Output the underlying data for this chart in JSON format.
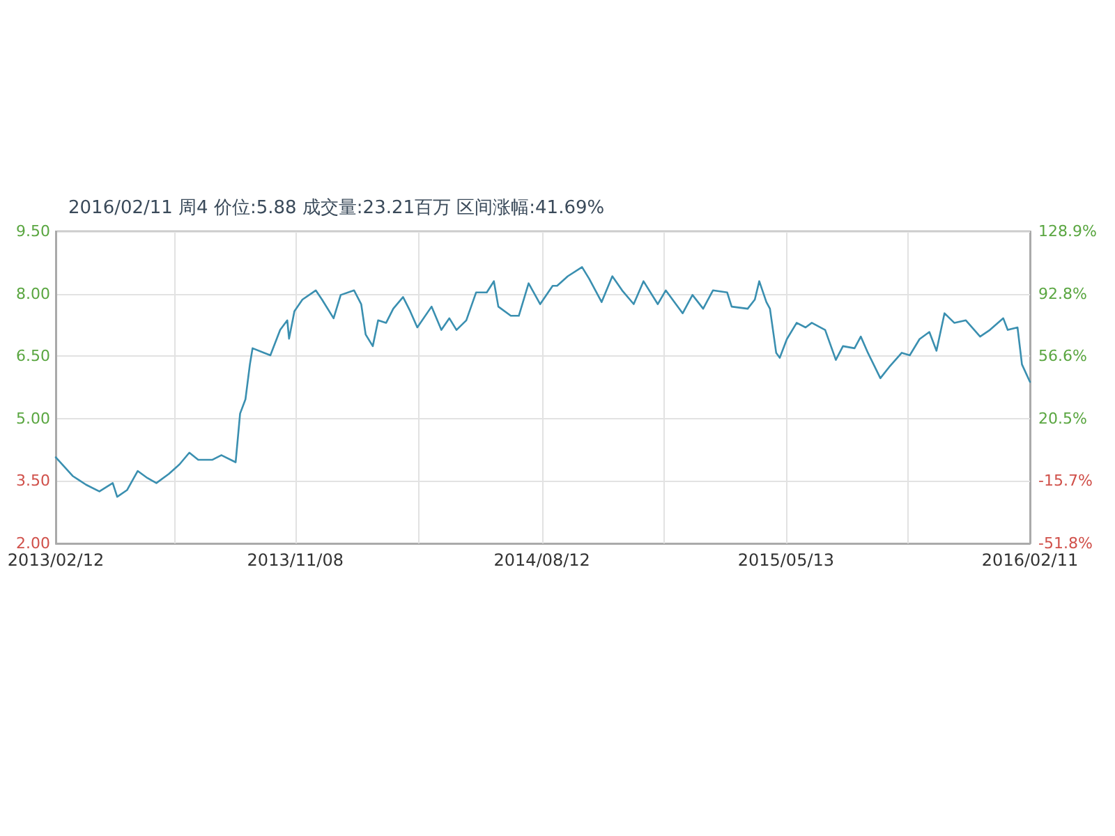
{
  "chart_data": {
    "type": "line",
    "title": "2016/02/11 周4 价位:5.88 成交量:23.21百万 区间涨幅:41.69%",
    "xlim": [
      "2013-02-12",
      "2016-02-11"
    ],
    "xticks": [
      {
        "value": "2013-02-12",
        "label": "2013/02/12"
      },
      {
        "value": "2013-06-26",
        "label": null
      },
      {
        "value": "2013-11-08",
        "label": "2013/11/08"
      },
      {
        "value": "2014-03-26",
        "label": null
      },
      {
        "value": "2014-08-12",
        "label": "2014/08/12"
      },
      {
        "value": "2014-12-27",
        "label": null
      },
      {
        "value": "2015-05-13",
        "label": "2015/05/13"
      },
      {
        "value": "2015-09-27",
        "label": null
      },
      {
        "value": "2016-02-11",
        "label": "2016/02/11"
      }
    ],
    "ylim": [
      2,
      9.5
    ],
    "yticks": [
      {
        "value": 2,
        "label": "2.00"
      },
      {
        "value": 3.5,
        "label": "3.50"
      },
      {
        "value": 5,
        "label": "5.00"
      },
      {
        "value": 6.5,
        "label": "6.50"
      },
      {
        "value": 8,
        "label": "8.00"
      },
      {
        "value": 9.5,
        "label": "9.50"
      }
    ],
    "y2lim": [
      -51.8,
      128.9
    ],
    "y2ticks": [
      {
        "value": -51.8,
        "label": "-51.8%"
      },
      {
        "value": -15.7,
        "label": "-15.7%"
      },
      {
        "value": 20.5,
        "label": "20.5%"
      },
      {
        "value": 56.6,
        "label": "56.6%"
      },
      {
        "value": 92.8,
        "label": "92.8%"
      },
      {
        "value": 128.9,
        "label": "128.9%"
      }
    ],
    "grid": true,
    "marker": "none",
    "line_style": "solid",
    "series": [
      {
        "color": "#3a8fb0",
        "x": [
          "2013-02-12",
          "2013-03-03",
          "2013-03-11",
          "2013-03-18",
          "2013-04-02",
          "2013-04-17",
          "2013-04-22",
          "2013-05-03",
          "2013-05-15",
          "2013-05-26",
          "2013-06-05",
          "2013-06-19",
          "2013-07-01",
          "2013-07-12",
          "2013-07-22",
          "2013-08-07",
          "2013-08-17",
          "2013-09-02",
          "2013-09-07",
          "2013-09-13",
          "2013-09-18",
          "2013-09-21",
          "2013-10-04",
          "2013-10-11",
          "2013-10-22",
          "2013-10-30",
          "2013-11-01",
          "2013-11-07",
          "2013-11-16",
          "2013-12-01",
          "2013-12-08",
          "2013-12-21",
          "2013-12-29",
          "2014-01-13",
          "2014-01-21",
          "2014-01-26",
          "2014-02-03",
          "2014-02-09",
          "2014-02-18",
          "2014-02-26",
          "2014-03-09",
          "2014-03-17",
          "2014-03-25",
          "2014-04-10",
          "2014-04-21",
          "2014-04-30",
          "2014-05-08",
          "2014-05-19",
          "2014-05-30",
          "2014-06-11",
          "2014-06-19",
          "2014-06-24",
          "2014-07-08",
          "2014-07-17",
          "2014-07-28",
          "2014-08-10",
          "2014-08-24",
          "2014-08-29",
          "2014-09-10",
          "2014-09-26",
          "2014-10-04",
          "2014-10-18",
          "2014-10-30",
          "2014-11-10",
          "2014-11-23",
          "2014-12-04",
          "2014-12-20",
          "2014-12-29",
          "2015-01-17",
          "2015-01-28",
          "2015-02-09",
          "2015-02-20",
          "2015-03-08",
          "2015-03-13",
          "2015-03-31",
          "2015-04-08",
          "2015-04-13",
          "2015-04-21",
          "2015-04-25",
          "2015-05-02",
          "2015-05-06",
          "2015-05-14",
          "2015-05-25",
          "2015-06-04",
          "2015-06-11",
          "2015-06-26",
          "2015-07-08",
          "2015-07-16",
          "2015-07-29",
          "2015-08-05",
          "2015-08-13",
          "2015-08-27",
          "2015-09-06",
          "2015-09-20",
          "2015-09-29",
          "2015-10-10",
          "2015-10-21",
          "2015-10-29",
          "2015-11-07",
          "2015-11-18",
          "2015-12-01",
          "2015-12-17",
          "2015-12-28",
          "2016-01-12",
          "2016-01-17",
          "2016-01-28",
          "2016-02-02",
          "2016-02-11"
        ],
        "values": [
          4.07,
          3.62,
          3.51,
          3.41,
          3.25,
          3.45,
          3.12,
          3.28,
          3.74,
          3.57,
          3.45,
          3.67,
          3.9,
          4.18,
          4.01,
          4.01,
          4.12,
          3.95,
          5.12,
          5.46,
          6.3,
          6.69,
          6.58,
          6.52,
          7.13,
          7.36,
          6.92,
          7.58,
          7.86,
          8.08,
          7.86,
          7.41,
          7.97,
          8.08,
          7.75,
          7.02,
          6.74,
          7.36,
          7.3,
          7.64,
          7.92,
          7.58,
          7.19,
          7.69,
          7.13,
          7.41,
          7.13,
          7.36,
          8.03,
          8.03,
          8.3,
          7.69,
          7.47,
          7.47,
          8.25,
          7.75,
          8.19,
          8.19,
          8.42,
          8.64,
          8.36,
          7.8,
          8.42,
          8.08,
          7.75,
          8.3,
          7.75,
          8.08,
          7.53,
          7.97,
          7.64,
          8.08,
          8.03,
          7.69,
          7.64,
          7.86,
          8.3,
          7.8,
          7.64,
          6.58,
          6.46,
          6.91,
          7.3,
          7.19,
          7.3,
          7.13,
          6.41,
          6.74,
          6.69,
          6.97,
          6.58,
          5.97,
          6.24,
          6.58,
          6.52,
          6.91,
          7.08,
          6.63,
          7.53,
          7.3,
          7.36,
          6.97,
          7.13,
          7.41,
          7.13,
          7.19,
          6.3,
          5.88
        ]
      }
    ]
  }
}
